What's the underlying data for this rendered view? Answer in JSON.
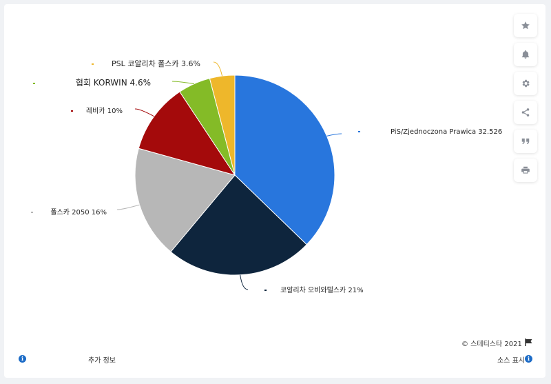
{
  "chart_data": {
    "type": "pie",
    "series": [
      {
        "name": "PiS/Zjednoczona Prawica",
        "label": "PiS/Zjednoczona Prawica 32.526",
        "value": 37.6,
        "color": "#2876dd"
      },
      {
        "name": "코알리차 오비와텔스카",
        "label": "코알리차 오비와텔스카 21%",
        "value": 24.1,
        "color": "#0e253d"
      },
      {
        "name": "폴스카 2050",
        "label": "폴스카 2050 16%",
        "value": 18.4,
        "color": "#b7b7b7"
      },
      {
        "name": "레비카",
        "label": "레비카 10%",
        "value": 11.5,
        "color": "#a40a0b"
      },
      {
        "name": "협회 KORWIN",
        "label": "협회 KORWIN 4.6%",
        "value": 5.3,
        "color": "#84bb27"
      },
      {
        "name": "PSL 코알리차 폴스카",
        "label": "PSL 코알리차 폴스카 3.6%",
        "value": 4.1,
        "color": "#eeb72b"
      }
    ]
  },
  "toolbar": {
    "icons": [
      "star-icon",
      "bell-icon",
      "gear-icon",
      "share-icon",
      "quote-icon",
      "print-icon"
    ]
  },
  "footer": {
    "copyright": "© 스테티스타 2021",
    "more_info": "추가 정보",
    "source": "소스 표시"
  }
}
